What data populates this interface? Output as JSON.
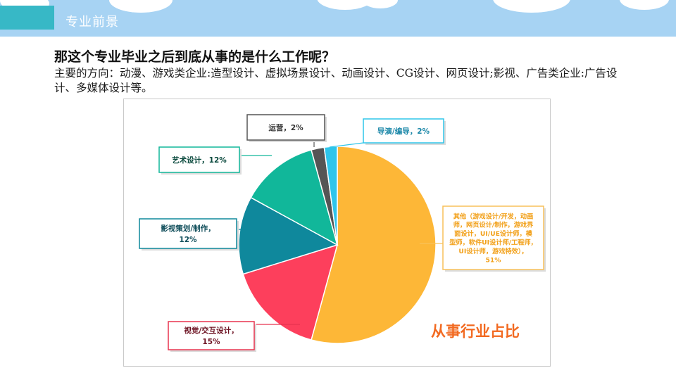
{
  "header": {
    "section_title": "专业前景"
  },
  "main": {
    "question": "那这个专业毕业之后到底从事的是什么工作呢？",
    "description": "主要的方向：动漫、游戏类企业:造型设计、虚拟场景设计、动画设计、CG设计、网页设计;影视、广告类企业:广告设计、多媒体设计等。"
  },
  "chart_data": {
    "type": "pie",
    "title": "从事行业占比",
    "slices": [
      {
        "label_lines": [
          "其他（游戏设计/开发，动画",
          "师，网页设计/制作，游戏界",
          "面设计，UI/UE设计师，模",
          "型师，软件UI设计师/工程师，",
          "UI设计师，游戏特效），",
          "51%"
        ],
        "value": 51,
        "color": "#fdb737",
        "text_color": "#f2a11b",
        "border_color": "#f8c15a"
      },
      {
        "label_lines": [
          "视觉/交互设计，",
          "15%"
        ],
        "value": 15,
        "color": "#fd3f5c",
        "text_color": "#6b1020",
        "border_color": "#e8334f"
      },
      {
        "label_lines": [
          "影视策划/制作，",
          "12%"
        ],
        "value": 12,
        "color": "#0f889c",
        "text_color": "#0f4d5a",
        "border_color": "#0f889c"
      },
      {
        "label_lines": [
          "艺术设计，12%"
        ],
        "value": 12,
        "color": "#11b79a",
        "text_color": "#0b4a3e",
        "border_color": "#11b79a"
      },
      {
        "label_lines": [
          "运营，2%"
        ],
        "value": 2,
        "color": "#555555",
        "text_color": "#333333",
        "border_color": "#555555"
      },
      {
        "label_lines": [
          "导演/编导，2%"
        ],
        "value": 2,
        "color": "#2ec5ea",
        "text_color": "#1a87a8",
        "border_color": "#2ec5ea"
      }
    ]
  }
}
